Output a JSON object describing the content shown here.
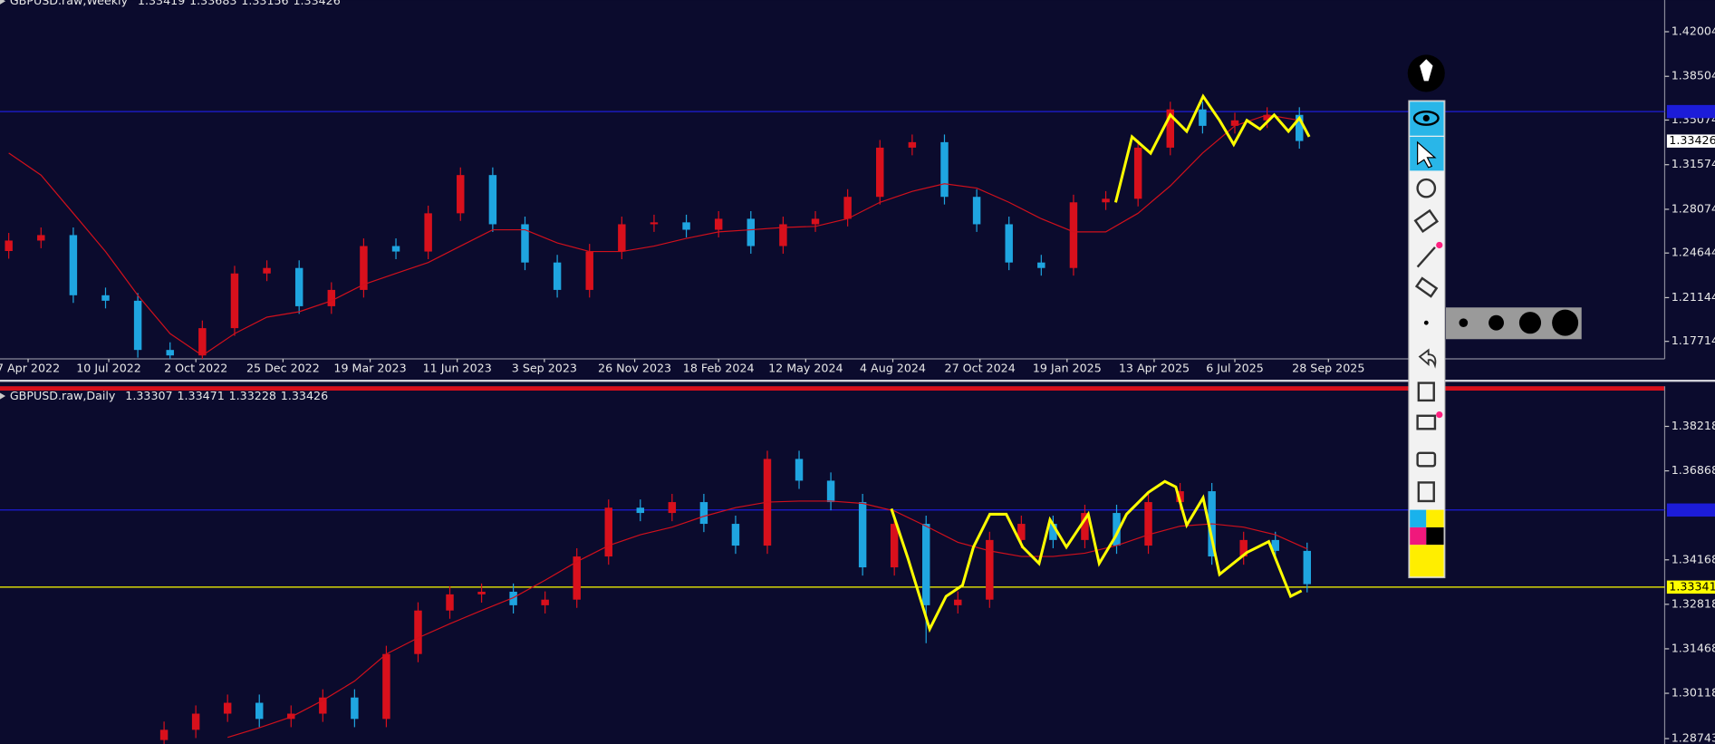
{
  "chart_data": [
    {
      "type": "candlestick",
      "title": "GBPUSD.raw,Weekly",
      "header_values": [
        1.33419,
        1.33683,
        1.33156,
        1.33426
      ],
      "candle_colors": {
        "up": "#d8101c",
        "down": "#1fa5e0"
      },
      "open": [
        1.248,
        1.2562,
        1.2605,
        1.2133,
        1.209,
        1.1704,
        1.1661,
        1.1875,
        1.2304,
        1.2347,
        1.2047,
        1.2175,
        1.2519,
        1.2476,
        1.2776,
        1.3076,
        1.269,
        1.239,
        1.2175,
        1.2476,
        1.269,
        1.2705,
        1.2647,
        1.2733,
        1.2519,
        1.269,
        1.2733,
        1.2905,
        1.3291,
        1.3334,
        1.2905,
        1.269,
        1.239,
        1.2347,
        1.2862,
        1.289,
        1.3291,
        1.3591,
        1.3462,
        1.3505,
        1.3548
      ],
      "high": [
        1.2622,
        1.2665,
        1.2665,
        1.2193,
        1.215,
        1.1764,
        1.1935,
        1.2364,
        1.2407,
        1.2407,
        1.2235,
        1.2579,
        1.2579,
        1.2836,
        1.3136,
        1.3136,
        1.275,
        1.245,
        1.2536,
        1.275,
        1.2765,
        1.2765,
        1.2793,
        1.2793,
        1.275,
        1.2793,
        1.2965,
        1.3351,
        1.3394,
        1.3394,
        1.2965,
        1.275,
        1.245,
        1.2922,
        1.295,
        1.3351,
        1.3651,
        1.3651,
        1.3565,
        1.3608,
        1.3608
      ],
      "low": [
        1.242,
        1.2502,
        1.2073,
        1.203,
        1.1644,
        1.1601,
        1.1601,
        1.1815,
        1.2244,
        1.1987,
        1.1987,
        1.2115,
        1.2416,
        1.2416,
        1.2716,
        1.263,
        1.233,
        1.2115,
        1.2115,
        1.2416,
        1.263,
        1.2587,
        1.2587,
        1.2459,
        1.2459,
        1.263,
        1.2673,
        1.2845,
        1.3231,
        1.2845,
        1.263,
        1.233,
        1.2287,
        1.2287,
        1.2802,
        1.283,
        1.3231,
        1.3402,
        1.3402,
        1.3445,
        1.3283
      ],
      "close": [
        1.2562,
        1.2605,
        1.2133,
        1.209,
        1.1704,
        1.1661,
        1.1875,
        1.2304,
        1.2347,
        1.2047,
        1.2175,
        1.2519,
        1.2476,
        1.2776,
        1.3076,
        1.269,
        1.239,
        1.2175,
        1.2476,
        1.269,
        1.2705,
        1.2647,
        1.2733,
        1.2519,
        1.269,
        1.2733,
        1.2905,
        1.3291,
        1.3334,
        1.2905,
        1.269,
        1.239,
        1.2347,
        1.2862,
        1.289,
        1.3291,
        1.3591,
        1.3462,
        1.3505,
        1.3548,
        1.3343
      ],
      "ma": {
        "color": "#d0101c",
        "values": [
          1.3248,
          1.3076,
          1.2776,
          1.2476,
          1.2133,
          1.1832,
          1.1661,
          1.1832,
          1.1961,
          1.2004,
          1.209,
          1.2218,
          1.2304,
          1.239,
          1.2519,
          1.2647,
          1.2647,
          1.2544,
          1.2476,
          1.2476,
          1.2519,
          1.2579,
          1.263,
          1.2647,
          1.2665,
          1.2673,
          1.2733,
          1.2862,
          1.2948,
          1.3008,
          1.2974,
          1.2862,
          1.2733,
          1.263,
          1.263,
          1.2776,
          1.2991,
          1.3248,
          1.3462,
          1.3548,
          1.3505
        ]
      },
      "ylim": [
        1.1634,
        1.4449
      ],
      "yticks": [
        1.42004,
        1.38504,
        1.35074,
        1.31574,
        1.28074,
        1.24644,
        1.21144,
        1.17714
      ],
      "xticks": [
        {
          "value": 0.6,
          "label": "7 Apr 2022"
        },
        {
          "value": 3.1,
          "label": "10 Jul 2022"
        },
        {
          "value": 5.8,
          "label": "2 Oct 2022"
        },
        {
          "value": 8.5,
          "label": "25 Dec 2022"
        },
        {
          "value": 11.2,
          "label": "19 Mar 2023"
        },
        {
          "value": 13.9,
          "label": "11 Jun 2023"
        },
        {
          "value": 16.6,
          "label": "3 Sep 2023"
        },
        {
          "value": 19.4,
          "label": "26 Nov 2023"
        },
        {
          "value": 22.0,
          "label": "18 Feb 2024"
        },
        {
          "value": 24.7,
          "label": "12 May 2024"
        },
        {
          "value": 27.4,
          "label": "4 Aug 2024"
        },
        {
          "value": 30.1,
          "label": "27 Oct 2024"
        },
        {
          "value": 32.8,
          "label": "19 Jan 2025"
        },
        {
          "value": 35.5,
          "label": "13 Apr 2025"
        },
        {
          "value": 38.0,
          "label": "6 Jul 2025"
        },
        {
          "value": 40.9,
          "label": "28 Sep 2025"
        }
      ],
      "hline": {
        "value": 1.3574,
        "color": "#1c1cd8"
      },
      "price_tag": {
        "value": 1.33426,
        "color": "#ffffff"
      }
    },
    {
      "type": "candlestick",
      "title": "GBPUSD.raw,Daily",
      "header_values": [
        1.33307,
        1.33471,
        1.33228,
        1.33426
      ],
      "candle_colors": {
        "up": "#d8101c",
        "down": "#1fa5e0"
      },
      "open": [
        1.287,
        1.2901,
        1.295,
        1.2983,
        1.2934,
        1.295,
        1.2999,
        1.2934,
        1.3131,
        1.3263,
        1.3312,
        1.332,
        1.3279,
        1.3296,
        1.3427,
        1.3575,
        1.3559,
        1.3592,
        1.3526,
        1.346,
        1.3723,
        1.3657,
        1.3592,
        1.3394,
        1.3526,
        1.3279,
        1.3296,
        1.3477,
        1.3526,
        1.3477,
        1.3559,
        1.346,
        1.3592,
        1.3625,
        1.3427,
        1.3477,
        1.3444
      ],
      "high": [
        1.2926,
        1.2975,
        1.3008,
        1.3008,
        1.2975,
        1.3024,
        1.3024,
        1.3156,
        1.3288,
        1.3337,
        1.3345,
        1.3345,
        1.3321,
        1.3452,
        1.36,
        1.36,
        1.3617,
        1.3617,
        1.3551,
        1.3748,
        1.3748,
        1.3682,
        1.3617,
        1.3551,
        1.3551,
        1.3321,
        1.3502,
        1.3551,
        1.3551,
        1.3584,
        1.3584,
        1.3617,
        1.365,
        1.365,
        1.3502,
        1.3502,
        1.3469
      ],
      "low": [
        1.2845,
        1.2876,
        1.2925,
        1.2909,
        1.2909,
        1.2925,
        1.2909,
        1.2909,
        1.3106,
        1.3238,
        1.3287,
        1.3254,
        1.3254,
        1.3271,
        1.3402,
        1.3534,
        1.3534,
        1.3501,
        1.3435,
        1.3435,
        1.3632,
        1.3567,
        1.3369,
        1.3369,
        1.3164,
        1.3254,
        1.3271,
        1.3452,
        1.3452,
        1.3452,
        1.3435,
        1.3435,
        1.3567,
        1.3402,
        1.3402,
        1.3419,
        1.3318
      ],
      "close": [
        1.2901,
        1.295,
        1.2983,
        1.2934,
        1.295,
        1.2999,
        1.2934,
        1.3131,
        1.3263,
        1.3312,
        1.332,
        1.3279,
        1.3296,
        1.3427,
        1.3575,
        1.3559,
        1.3592,
        1.3526,
        1.346,
        1.3723,
        1.3657,
        1.3592,
        1.3394,
        1.3526,
        1.3279,
        1.3296,
        1.3477,
        1.3526,
        1.3477,
        1.3559,
        1.346,
        1.3592,
        1.3625,
        1.3427,
        1.3477,
        1.3444,
        1.3343
      ],
      "ma": {
        "color": "#d0101c",
        "values": [
          null,
          null,
          1.2878,
          1.2907,
          1.294,
          1.299,
          1.3049,
          1.3131,
          1.318,
          1.3223,
          1.3263,
          1.3302,
          1.3355,
          1.3411,
          1.346,
          1.3493,
          1.3516,
          1.3549,
          1.3575,
          1.3592,
          1.3595,
          1.3595,
          1.3588,
          1.3565,
          1.3519,
          1.347,
          1.3444,
          1.3427,
          1.3427,
          1.3437,
          1.346,
          1.3493,
          1.3519,
          1.3526,
          1.3516,
          1.3493,
          1.345
        ]
      },
      "ylim": [
        1.2858,
        1.3937
      ],
      "yticks": [
        1.38218,
        1.36868,
        1.34168,
        1.32818,
        1.31468,
        1.30118,
        1.28743
      ],
      "hline": {
        "value": 1.3568,
        "color": "#1c1cd8"
      },
      "price_tag": {
        "value": 1.33341,
        "color": "#ffff00"
      }
    }
  ]
}
